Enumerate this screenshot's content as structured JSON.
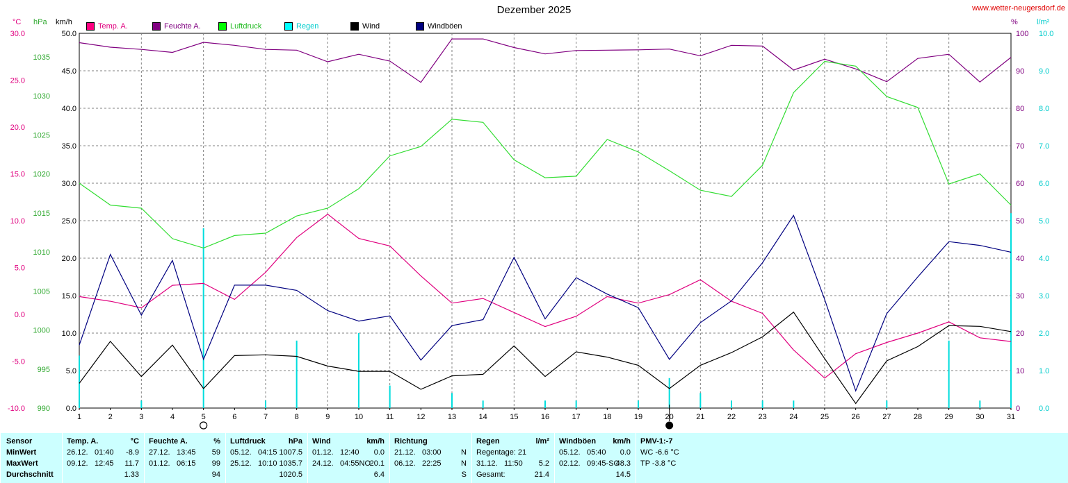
{
  "title": "Dezember 2025",
  "site": "www.wetter-neugersdorf.de",
  "units": {
    "temp": "°C",
    "pressure": "hPa",
    "wind": "km/h",
    "humidity": "%",
    "rain": "l/m²"
  },
  "legend": [
    {
      "label": "Temp. A.",
      "color": "#ff0080"
    },
    {
      "label": "Feuchte A.",
      "color": "#800080"
    },
    {
      "label": "Luftdruck",
      "color": "#00ff00"
    },
    {
      "label": "Regen",
      "color": "#00ffff"
    },
    {
      "label": "Wind",
      "color": "#000000"
    },
    {
      "label": "Windböen",
      "color": "#000080"
    }
  ],
  "colors": {
    "temp": "#e0007f",
    "humidity": "#800080",
    "pressure": "#33dd33",
    "rain": "#00dddd",
    "wind": "#000000",
    "gust": "#000080",
    "grid": "#808080"
  },
  "chart_data": {
    "type": "line",
    "x": [
      1,
      2,
      3,
      4,
      5,
      6,
      7,
      8,
      9,
      10,
      11,
      12,
      13,
      14,
      15,
      16,
      17,
      18,
      19,
      20,
      21,
      22,
      23,
      24,
      25,
      26,
      27,
      28,
      29,
      30,
      31
    ],
    "axes": {
      "temp": {
        "label": "°C",
        "ylim": [
          -10,
          30
        ],
        "ticks": [
          "30.0",
          "25.0",
          "20.0",
          "15.0",
          "10.0",
          "5.0",
          "0.0",
          "-5.0",
          "-10.0"
        ]
      },
      "pressure": {
        "label": "hPa",
        "ylim": [
          990,
          1038
        ],
        "ticks": [
          "1035",
          "1030",
          "1025",
          "1020",
          "1015",
          "1010",
          "1005",
          "1000",
          "995",
          "990"
        ]
      },
      "wind": {
        "label": "km/h",
        "ylim": [
          0,
          50
        ],
        "ticks": [
          "50.0",
          "45.0",
          "40.0",
          "35.0",
          "30.0",
          "25.0",
          "20.0",
          "15.0",
          "10.0",
          "5.0",
          "0.0"
        ]
      },
      "humidity": {
        "label": "%",
        "ylim": [
          0,
          100
        ],
        "ticks": [
          "100",
          "90",
          "80",
          "70",
          "60",
          "50",
          "40",
          "30",
          "20",
          "10",
          "0"
        ]
      },
      "rain": {
        "label": "l/m²",
        "ylim": [
          0,
          10
        ],
        "ticks": [
          "10.0",
          "9.0",
          "8.0",
          "7.0",
          "6.0",
          "5.0",
          "4.0",
          "3.0",
          "2.0",
          "1.0",
          "0.0"
        ]
      }
    },
    "series": [
      {
        "name": "Temp. A.",
        "axis": "temp",
        "values": [
          1.9,
          1.4,
          0.7,
          3.1,
          3.3,
          1.6,
          4.5,
          8.2,
          10.7,
          8.1,
          7.3,
          4.1,
          1.2,
          1.7,
          0.2,
          -1.3,
          -0.2,
          1.9,
          1.2,
          2.1,
          3.7,
          1.4,
          0.1,
          -3.8,
          -6.8,
          -4.2,
          -3.0,
          -2.0,
          -0.8,
          -2.5,
          -2.9
        ]
      },
      {
        "name": "Feuchte A.",
        "axis": "humidity",
        "values": [
          97.5,
          96.3,
          95.7,
          94.9,
          97.6,
          96.8,
          95.7,
          95.5,
          92.4,
          94.4,
          92.6,
          86.9,
          98.5,
          98.5,
          96.2,
          94.5,
          95.4,
          95.5,
          95.6,
          95.8,
          94.0,
          96.8,
          96.6,
          90.2,
          93.1,
          90.5,
          87.1,
          93.3,
          94.4,
          87.0,
          93.6
        ]
      },
      {
        "name": "Luftdruck",
        "axis": "pressure",
        "values": [
          1018.8,
          1016.0,
          1015.6,
          1011.7,
          1010.5,
          1012.1,
          1012.4,
          1014.6,
          1015.6,
          1018.1,
          1022.3,
          1023.5,
          1027.0,
          1026.6,
          1021.8,
          1019.5,
          1019.7,
          1024.4,
          1022.8,
          1020.4,
          1017.9,
          1017.1,
          1021.1,
          1030.4,
          1034.4,
          1033.8,
          1029.9,
          1028.5,
          1018.7,
          1020.0,
          1016.0
        ]
      },
      {
        "name": "Wind",
        "axis": "wind",
        "values": [
          3.3,
          8.9,
          4.2,
          8.4,
          2.6,
          7.0,
          7.1,
          6.9,
          5.6,
          4.9,
          4.9,
          2.5,
          4.3,
          4.5,
          8.3,
          4.2,
          7.5,
          6.8,
          5.7,
          2.6,
          5.7,
          7.4,
          9.5,
          12.8,
          6.6,
          0.6,
          6.3,
          8.2,
          11.0,
          10.9,
          10.2
        ]
      },
      {
        "name": "Windböen",
        "axis": "wind",
        "values": [
          8.4,
          20.5,
          12.4,
          19.7,
          6.5,
          16.4,
          16.4,
          15.7,
          13.0,
          11.6,
          12.3,
          6.4,
          11.0,
          11.8,
          20.1,
          11.9,
          17.4,
          15.2,
          13.4,
          6.5,
          11.4,
          14.3,
          19.4,
          25.7,
          14.5,
          2.3,
          12.6,
          17.5,
          22.2,
          21.7,
          20.8
        ]
      },
      {
        "name": "Regen",
        "axis": "rain",
        "values": [
          1.4,
          0,
          0.2,
          0,
          4.8,
          0,
          0.2,
          1.8,
          0,
          2.0,
          0.6,
          0,
          0.4,
          0.2,
          0,
          0.2,
          0.2,
          0,
          0.2,
          0.8,
          0.4,
          0.2,
          0.2,
          0.2,
          0,
          0,
          0.2,
          0,
          1.8,
          0.2,
          5.2
        ]
      }
    ],
    "markers": [
      {
        "day": 5,
        "symbol": "○"
      },
      {
        "day": 20,
        "symbol": "●"
      }
    ]
  },
  "table": {
    "columns": [
      {
        "head": "Sensor",
        "unit": "",
        "rows": [
          "MinWert",
          "MaxWert",
          "Durchschnitt"
        ]
      },
      {
        "head": "Temp. A.",
        "unit": "°C",
        "rows": [
          [
            "26.12.",
            "01:40",
            "-8.9"
          ],
          [
            "09.12.",
            "12:45",
            "11.7"
          ],
          [
            "",
            "",
            "1.33"
          ]
        ]
      },
      {
        "head": "Feuchte A.",
        "unit": "%",
        "rows": [
          [
            "27.12.",
            "13:45",
            "59"
          ],
          [
            "01.12.",
            "06:15",
            "99"
          ],
          [
            "",
            "",
            "94"
          ]
        ]
      },
      {
        "head": "Luftdruck",
        "unit": "hPa",
        "rows": [
          [
            "05.12.",
            "04:15",
            "1007.5"
          ],
          [
            "25.12.",
            "10:10",
            "1035.7"
          ],
          [
            "",
            "",
            "1020.5"
          ]
        ]
      },
      {
        "head": "Wind",
        "unit": "km/h",
        "rows": [
          [
            "01.12.",
            "12:40",
            "0.0"
          ],
          [
            "24.12.",
            "04:55NO",
            "20.1"
          ],
          [
            "",
            "",
            "6.4"
          ]
        ]
      },
      {
        "head": "Richtung",
        "unit": "",
        "rows": [
          [
            "21.12.",
            "03:00",
            "N"
          ],
          [
            "06.12.",
            "22:25",
            "N"
          ],
          [
            "",
            "",
            "S"
          ]
        ]
      },
      {
        "head": "Regen",
        "unit": "l/m²",
        "rows": [
          [
            "Regentage: 21",
            "",
            ""
          ],
          [
            "31.12.",
            "11:50",
            "5.2"
          ],
          [
            "Gesamt:",
            "",
            "21.4"
          ]
        ]
      },
      {
        "head": "Windböen",
        "unit": "km/h",
        "rows": [
          [
            "05.12.",
            "05:40",
            "0.0"
          ],
          [
            "02.12.",
            "09:45-SO",
            "48.3"
          ],
          [
            "",
            "",
            "14.5"
          ]
        ]
      },
      {
        "head": "PMV-1:-7",
        "unit": "",
        "rows": [
          "WC -6.6 °C",
          "TP -3.8 °C",
          ""
        ]
      }
    ]
  }
}
